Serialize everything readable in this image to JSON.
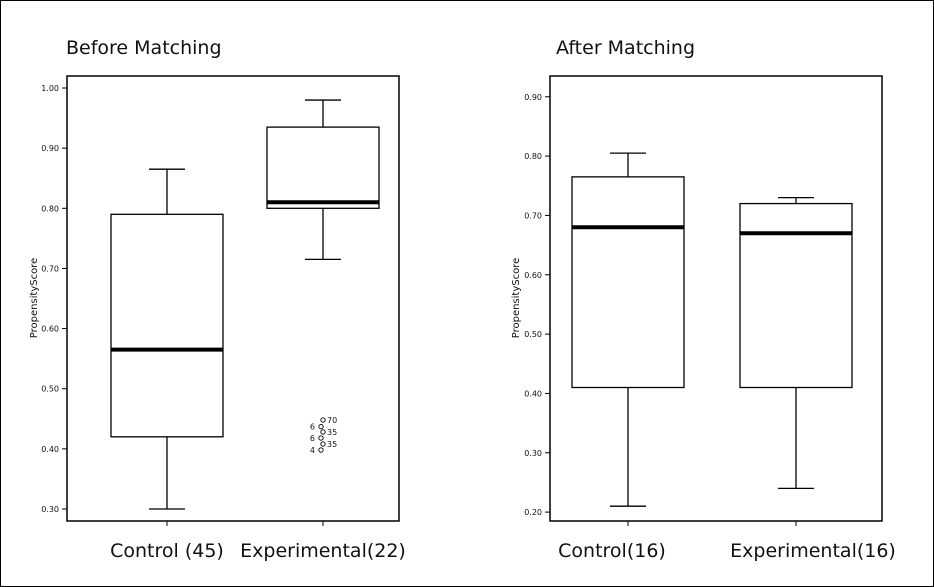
{
  "chart_data": [
    {
      "type": "boxplot",
      "title": "Before Matching",
      "ylabel": "PropensityScore",
      "ylim": [
        0.28,
        1.02
      ],
      "yticks": [
        0.3,
        0.4,
        0.5,
        0.6,
        0.7,
        0.8,
        0.9,
        1.0
      ],
      "ytick_labels": [
        "0.30",
        "0.40",
        "0.50",
        "0.60",
        "0.70",
        "0.80",
        "0.90",
        "1.00"
      ],
      "categories": [
        "Control (45)",
        "Experimental(22)"
      ],
      "boxes": [
        {
          "whisker_low": 0.3,
          "q1": 0.42,
          "median": 0.565,
          "q3": 0.79,
          "whisker_high": 0.865
        },
        {
          "whisker_low": 0.715,
          "q1": 0.8,
          "median": 0.81,
          "q3": 0.935,
          "whisker_high": 0.98
        }
      ],
      "outliers": [
        {
          "category_index": 1,
          "points": [
            {
              "y": 0.448,
              "label": "70"
            },
            {
              "y": 0.437,
              "label": "6"
            },
            {
              "y": 0.428,
              "label": "35"
            },
            {
              "y": 0.418,
              "label": "6"
            },
            {
              "y": 0.408,
              "label": "35"
            },
            {
              "y": 0.398,
              "label": "4"
            }
          ]
        }
      ],
      "grid": false
    },
    {
      "type": "boxplot",
      "title": "After Matching",
      "ylabel": "PropensityScore",
      "ylim": [
        0.185,
        0.935
      ],
      "yticks": [
        0.2,
        0.3,
        0.4,
        0.5,
        0.6,
        0.7,
        0.8,
        0.9
      ],
      "ytick_labels": [
        "0.20",
        "0.30",
        "0.40",
        "0.50",
        "0.60",
        "0.70",
        "0.80",
        "0.90"
      ],
      "categories": [
        "Control(16)",
        "Experimental(16)"
      ],
      "boxes": [
        {
          "whisker_low": 0.21,
          "q1": 0.41,
          "median": 0.68,
          "q3": 0.765,
          "whisker_high": 0.805
        },
        {
          "whisker_low": 0.24,
          "q1": 0.41,
          "median": 0.67,
          "q3": 0.72,
          "whisker_high": 0.73
        }
      ],
      "outliers": [],
      "grid": false
    }
  ],
  "colors": {
    "line": "#000000",
    "background": "#ffffff"
  }
}
